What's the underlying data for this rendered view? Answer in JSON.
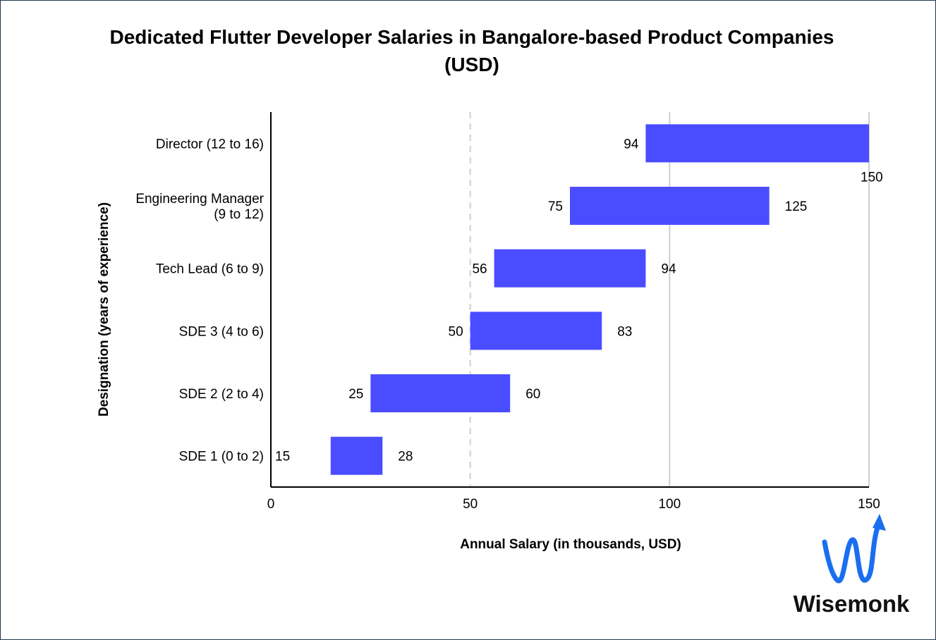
{
  "chart_data": {
    "type": "bar",
    "orientation": "horizontal",
    "style": "floating-range",
    "title_lines": [
      "Dedicated Flutter Developer Salaries in Bangalore-based Product Companies",
      "(USD)"
    ],
    "xlabel": "Annual Salary (in thousands, USD)",
    "ylabel": "Designation (years of experience)",
    "xlim": [
      0,
      150
    ],
    "xticks": [
      0,
      50,
      100,
      150
    ],
    "grid": "vertical",
    "categories": [
      [
        "Director (12 to 16)"
      ],
      [
        "Engineering Manager",
        "(9 to 12)"
      ],
      [
        "Tech Lead (6 to 9)"
      ],
      [
        "SDE 3 (4 to 6)"
      ],
      [
        "SDE 2 (2 to 4)"
      ],
      [
        "SDE 1 (0 to 2)"
      ]
    ],
    "ranges": [
      [
        94,
        150
      ],
      [
        75,
        125
      ],
      [
        56,
        94
      ],
      [
        50,
        83
      ],
      [
        25,
        60
      ],
      [
        15,
        28
      ]
    ],
    "bar_color": "#4a4dff"
  },
  "logo": {
    "text": "Wisemonk",
    "color": "#1a6ff0"
  }
}
